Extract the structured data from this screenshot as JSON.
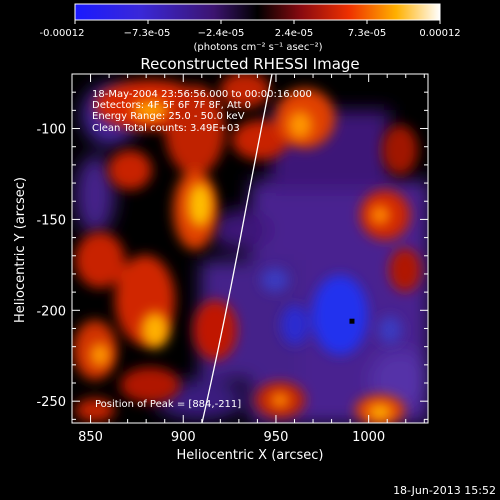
{
  "colorbar": {
    "ticks": [
      "-0.00012",
      "−7.3e-05",
      "−2.4e-05",
      "2.4e-05",
      "7.3e-05",
      "0.00012"
    ],
    "unit_label": "(photons cm⁻² s⁻¹ asec⁻²)",
    "scale": "blue-purple-red-yellow-white",
    "range": [
      -0.00012,
      0.00012
    ]
  },
  "chart_data": {
    "type": "heatmap",
    "title": "Reconstructed RHESSI Image",
    "xlabel": "Heliocentric X (arcsec)",
    "ylabel": "Heliocentric Y (arcsec)",
    "xlim": [
      840,
      1032
    ],
    "ylim": [
      -262,
      -70
    ],
    "x_ticks": [
      850,
      900,
      950,
      1000
    ],
    "y_ticks": [
      -100,
      -150,
      -200,
      -250
    ],
    "annotations": [
      "18-May-2004 23:56:56.000 to 00:00:16.000",
      "Detectors: 4F 5F 6F 7F 8F, Att 0",
      "Energy Range: 25.0 - 50.0 keV",
      "Clean     Total counts: 3.49E+03"
    ],
    "peak_label": "Position of Peak = [884,-211]",
    "marker": {
      "x": 991,
      "y": -206
    }
  },
  "footer": {
    "date": "18-Jun-2013 15:52"
  }
}
